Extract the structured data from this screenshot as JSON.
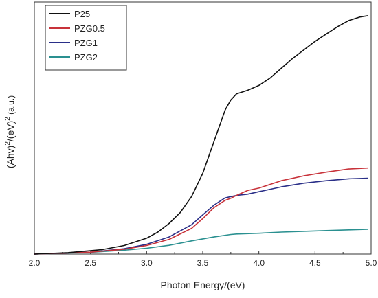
{
  "chart_data": {
    "type": "line",
    "title": "",
    "xlabel": "Photon Energy/(eV)",
    "ylabel_parts": {
      "base1": "(Ahv)",
      "exp1": "2",
      "base2": "/(eV)",
      "exp2": "2",
      "unit": " (a.u.)"
    },
    "xlim": [
      2.0,
      5.0
    ],
    "ylim": [
      0,
      1
    ],
    "y_ticks_labeled": false,
    "grid": false,
    "legend_position": "top-left",
    "x_ticks": [
      "2.0",
      "2.5",
      "3.0",
      "3.5",
      "4.0",
      "4.5",
      "5.0"
    ],
    "series": [
      {
        "name": "P25",
        "color": "#111111",
        "points": [
          [
            2.0,
            0.0
          ],
          [
            2.3,
            0.006
          ],
          [
            2.6,
            0.018
          ],
          [
            2.8,
            0.035
          ],
          [
            3.0,
            0.065
          ],
          [
            3.1,
            0.09
          ],
          [
            3.2,
            0.125
          ],
          [
            3.3,
            0.17
          ],
          [
            3.4,
            0.235
          ],
          [
            3.5,
            0.33
          ],
          [
            3.6,
            0.46
          ],
          [
            3.7,
            0.59
          ],
          [
            3.75,
            0.63
          ],
          [
            3.8,
            0.655
          ],
          [
            3.9,
            0.67
          ],
          [
            4.0,
            0.69
          ],
          [
            4.1,
            0.72
          ],
          [
            4.2,
            0.76
          ],
          [
            4.3,
            0.8
          ],
          [
            4.4,
            0.835
          ],
          [
            4.5,
            0.87
          ],
          [
            4.6,
            0.9
          ],
          [
            4.7,
            0.93
          ],
          [
            4.8,
            0.955
          ],
          [
            4.9,
            0.97
          ],
          [
            4.97,
            0.975
          ]
        ]
      },
      {
        "name": "PZG0.5",
        "color": "#c8323a",
        "points": [
          [
            2.0,
            0.0
          ],
          [
            2.5,
            0.008
          ],
          [
            2.8,
            0.02
          ],
          [
            3.0,
            0.035
          ],
          [
            3.2,
            0.06
          ],
          [
            3.4,
            0.105
          ],
          [
            3.5,
            0.145
          ],
          [
            3.6,
            0.19
          ],
          [
            3.7,
            0.22
          ],
          [
            3.75,
            0.228
          ],
          [
            3.8,
            0.24
          ],
          [
            3.9,
            0.26
          ],
          [
            4.0,
            0.27
          ],
          [
            4.2,
            0.3
          ],
          [
            4.4,
            0.32
          ],
          [
            4.6,
            0.335
          ],
          [
            4.8,
            0.348
          ],
          [
            4.97,
            0.352
          ]
        ]
      },
      {
        "name": "PZG1",
        "color": "#2a2f88",
        "points": [
          [
            2.0,
            0.0
          ],
          [
            2.5,
            0.008
          ],
          [
            2.8,
            0.022
          ],
          [
            3.0,
            0.04
          ],
          [
            3.2,
            0.07
          ],
          [
            3.4,
            0.12
          ],
          [
            3.5,
            0.16
          ],
          [
            3.6,
            0.2
          ],
          [
            3.7,
            0.23
          ],
          [
            3.75,
            0.235
          ],
          [
            3.8,
            0.24
          ],
          [
            3.9,
            0.245
          ],
          [
            4.0,
            0.255
          ],
          [
            4.2,
            0.275
          ],
          [
            4.4,
            0.29
          ],
          [
            4.6,
            0.3
          ],
          [
            4.8,
            0.308
          ],
          [
            4.97,
            0.31
          ]
        ]
      },
      {
        "name": "PZG2",
        "color": "#2a9090",
        "points": [
          [
            2.0,
            0.0
          ],
          [
            2.5,
            0.007
          ],
          [
            2.8,
            0.016
          ],
          [
            3.0,
            0.024
          ],
          [
            3.2,
            0.036
          ],
          [
            3.4,
            0.054
          ],
          [
            3.6,
            0.07
          ],
          [
            3.75,
            0.08
          ],
          [
            3.8,
            0.082
          ],
          [
            4.0,
            0.085
          ],
          [
            4.2,
            0.09
          ],
          [
            4.4,
            0.093
          ],
          [
            4.6,
            0.096
          ],
          [
            4.8,
            0.099
          ],
          [
            4.97,
            0.101
          ]
        ]
      }
    ]
  }
}
